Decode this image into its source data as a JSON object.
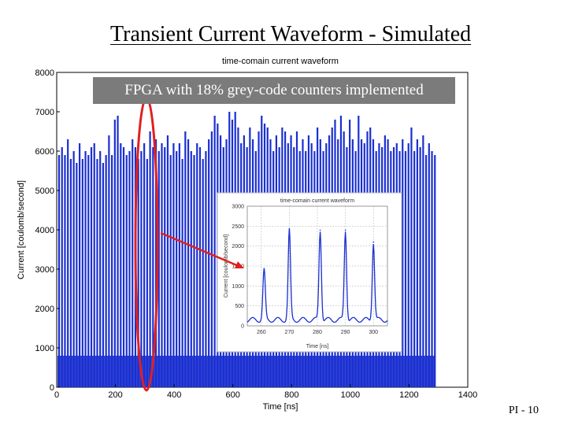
{
  "slide": {
    "title": "Transient Current Waveform - Simulated",
    "callout": "FPGA with 18% grey-code counters implemented",
    "page_number": "PI - 10"
  },
  "colors": {
    "waveform": "#1a2fd0",
    "annotation": "#e02020",
    "callout_bg": "#7b7b7b"
  },
  "chart_data": [
    {
      "type": "line",
      "title": "time-comain current waveform",
      "xlabel": "Time [ns]",
      "ylabel": "Current [coulomb/second]",
      "xlim": [
        0,
        1400
      ],
      "ylim": [
        0,
        8000
      ],
      "xticks": [
        "0",
        "200",
        "400",
        "600",
        "800",
        "1000",
        "1200",
        "1400"
      ],
      "yticks": [
        "0",
        "1000",
        "2000",
        "3000",
        "4000",
        "5000",
        "6000",
        "7000",
        "8000"
      ],
      "grid": false,
      "series": [
        {
          "period_ns": 10,
          "baseline_range": [
            0,
            800
          ],
          "peaks_ns": [
            0,
            10,
            20,
            30,
            40,
            50,
            60,
            70,
            80,
            90,
            100,
            110,
            120,
            130,
            140,
            150,
            160,
            170,
            180,
            190,
            200,
            210,
            220,
            230,
            240,
            250,
            260,
            270,
            280,
            290,
            300,
            310,
            320,
            330,
            340,
            350,
            360,
            370,
            380,
            390,
            400,
            410,
            420,
            430,
            440,
            450,
            460,
            470,
            480,
            490,
            500,
            510,
            520,
            530,
            540,
            550,
            560,
            570,
            580,
            590,
            600,
            610,
            620,
            630,
            640,
            650,
            660,
            670,
            680,
            690,
            700,
            710,
            720,
            730,
            740,
            750,
            760,
            770,
            780,
            790,
            800,
            810,
            820,
            830,
            840,
            850,
            860,
            870,
            880,
            890,
            900,
            910,
            920,
            930,
            940,
            950,
            960,
            970,
            980,
            990,
            1000,
            1010,
            1020,
            1030,
            1040,
            1050,
            1060,
            1070,
            1080,
            1090,
            1100,
            1110,
            1120,
            1130,
            1140,
            1150,
            1160,
            1170,
            1180,
            1190,
            1200,
            1210,
            1220,
            1230,
            1240,
            1250,
            1260,
            1270,
            1280
          ],
          "peak_values": [
            5900,
            6100,
            5900,
            6300,
            5800,
            6000,
            5700,
            6200,
            5800,
            6000,
            5900,
            6100,
            6200,
            5800,
            6000,
            5700,
            5900,
            6400,
            5900,
            6800,
            6900,
            6200,
            6100,
            5900,
            6000,
            6300,
            6100,
            5800,
            6000,
            6200,
            5800,
            6500,
            6100,
            6300,
            6000,
            6200,
            6100,
            6400,
            5900,
            6200,
            6000,
            6200,
            5800,
            6500,
            6300,
            6000,
            5900,
            6200,
            6100,
            5800,
            6000,
            6300,
            6500,
            6900,
            6700,
            6400,
            6100,
            6300,
            7000,
            6800,
            7000,
            6600,
            6200,
            6400,
            6100,
            6600,
            6300,
            6000,
            6500,
            6900,
            6700,
            6600,
            6300,
            6000,
            6400,
            6100,
            6600,
            6500,
            6200,
            6400,
            6100,
            6500,
            6000,
            6300,
            6000,
            6400,
            6200,
            6000,
            6600,
            6300,
            6000,
            6200,
            6400,
            6600,
            6800,
            6300,
            6900,
            6500,
            6100,
            6800,
            6300,
            6000,
            6900,
            6300,
            6200,
            6500,
            6600,
            6300,
            6000,
            6200,
            6100,
            6400,
            6300,
            6000,
            6100,
            6200,
            6000,
            6300,
            6000,
            6200,
            6600,
            6000,
            6300,
            6100,
            6400,
            5900,
            6200,
            6000,
            5900
          ]
        }
      ]
    },
    {
      "type": "line",
      "title": "time-comain current waveform",
      "xlabel": "Time [ns]",
      "ylabel": "Current [coulomb/second]",
      "xlim": [
        255,
        305
      ],
      "ylim": [
        0,
        3000
      ],
      "xticks": [
        "260",
        "270",
        "280",
        "290",
        "300"
      ],
      "yticks": [
        "0",
        "500",
        "1000",
        "1500",
        "2000",
        "2500",
        "3000"
      ],
      "grid": true,
      "series": [
        {
          "peaks_ns": [
            261,
            270,
            281,
            290,
            300
          ],
          "peak_values": [
            1400,
            2400,
            2400,
            2400,
            2100
          ],
          "baseline": 150
        }
      ]
    }
  ]
}
